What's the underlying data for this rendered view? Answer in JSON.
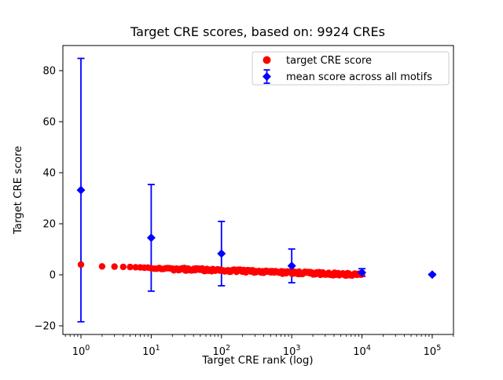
{
  "chart_data": {
    "type": "scatter",
    "title": "Target CRE scores, based on: 9924 CREs",
    "xlabel": "Target CRE rank (log)",
    "ylabel": "Target CRE score",
    "x_scale": "log",
    "xlim_log10": [
      -0.2573,
      5.3024
    ],
    "ylim": [
      -23.38,
      89.85
    ],
    "grid": false,
    "background": "#ffffff",
    "spine_color": "#000000",
    "y_ticks": [
      {
        "value": -20,
        "label": "−20"
      },
      {
        "value": 0,
        "label": "0"
      },
      {
        "value": 20,
        "label": "20"
      },
      {
        "value": 40,
        "label": "40"
      },
      {
        "value": 60,
        "label": "60"
      },
      {
        "value": 80,
        "label": "80"
      }
    ],
    "x_ticks": [
      {
        "value": 1,
        "mantissa": "10",
        "exponent": "0"
      },
      {
        "value": 10,
        "mantissa": "10",
        "exponent": "1"
      },
      {
        "value": 100,
        "mantissa": "10",
        "exponent": "2"
      },
      {
        "value": 1000,
        "mantissa": "10",
        "exponent": "3"
      },
      {
        "value": 10000,
        "mantissa": "10",
        "exponent": "4"
      },
      {
        "value": 100000,
        "mantissa": "10",
        "exponent": "5"
      }
    ],
    "series": [
      {
        "name": "target CRE score",
        "marker": "circle",
        "color": "#ff0000",
        "n_points_total": 9924,
        "rank_range": [
          1,
          9924
        ],
        "description": "red dots: per-CRE target score vs rank, dense overlapping band declining from ~4 at rank 1 to ~0 at rank 9924",
        "trend_points": [
          [
            1,
            4.0
          ],
          [
            2,
            3.3
          ],
          [
            3,
            3.2
          ],
          [
            4,
            3.1
          ],
          [
            5,
            3.05
          ],
          [
            7,
            2.9
          ],
          [
            10,
            2.6
          ],
          [
            20,
            2.3
          ],
          [
            50,
            2.0
          ],
          [
            100,
            1.75
          ],
          [
            300,
            1.3
          ],
          [
            1000,
            0.85
          ],
          [
            3000,
            0.45
          ],
          [
            9924,
            0.1
          ]
        ]
      },
      {
        "name": "mean score across all motifs",
        "marker": "diamond",
        "color": "#0000ff",
        "points": [
          {
            "x": 1,
            "mean": 33.2,
            "err": 51.6
          },
          {
            "x": 10,
            "mean": 14.5,
            "err": 20.9
          },
          {
            "x": 100,
            "mean": 8.3,
            "err": 12.6
          },
          {
            "x": 1000,
            "mean": 3.5,
            "err": 6.6
          },
          {
            "x": 10000,
            "mean": 0.9,
            "err": 1.5
          },
          {
            "x": 100000,
            "mean": 0.1,
            "err": 0.3
          }
        ]
      }
    ],
    "legend": {
      "position": "upper right",
      "border_color": "#cccccc",
      "entries": [
        {
          "label": "target CRE score",
          "marker": "circle",
          "color": "#ff0000"
        },
        {
          "label": "mean score across all motifs",
          "marker": "diamond",
          "color": "#0000ff"
        }
      ]
    }
  }
}
